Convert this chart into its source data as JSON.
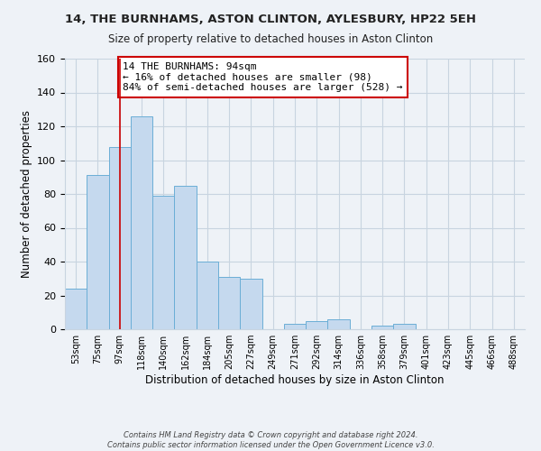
{
  "title": "14, THE BURNHAMS, ASTON CLINTON, AYLESBURY, HP22 5EH",
  "subtitle": "Size of property relative to detached houses in Aston Clinton",
  "xlabel": "Distribution of detached houses by size in Aston Clinton",
  "ylabel": "Number of detached properties",
  "bin_labels": [
    "53sqm",
    "75sqm",
    "97sqm",
    "118sqm",
    "140sqm",
    "162sqm",
    "184sqm",
    "205sqm",
    "227sqm",
    "249sqm",
    "271sqm",
    "292sqm",
    "314sqm",
    "336sqm",
    "358sqm",
    "379sqm",
    "401sqm",
    "423sqm",
    "445sqm",
    "466sqm",
    "488sqm"
  ],
  "bar_values": [
    24,
    91,
    108,
    126,
    79,
    85,
    40,
    31,
    30,
    0,
    3,
    5,
    6,
    0,
    2,
    3,
    0,
    0,
    0,
    0,
    0
  ],
  "bar_color": "#c5d9ee",
  "bar_edge_color": "#6baed6",
  "vline_x_index": 2,
  "vline_color": "#cc0000",
  "annotation_line1": "14 THE BURNHAMS: 94sqm",
  "annotation_line2": "← 16% of detached houses are smaller (98)",
  "annotation_line3": "84% of semi-detached houses are larger (528) →",
  "annotation_box_color": "#ffffff",
  "annotation_border_color": "#cc0000",
  "ylim": [
    0,
    160
  ],
  "yticks": [
    0,
    20,
    40,
    60,
    80,
    100,
    120,
    140,
    160
  ],
  "footer_line1": "Contains HM Land Registry data © Crown copyright and database right 2024.",
  "footer_line2": "Contains public sector information licensed under the Open Government Licence v3.0.",
  "bg_color": "#eef2f7",
  "plot_bg_color": "#eef2f7",
  "grid_color": "#c8d4e0"
}
